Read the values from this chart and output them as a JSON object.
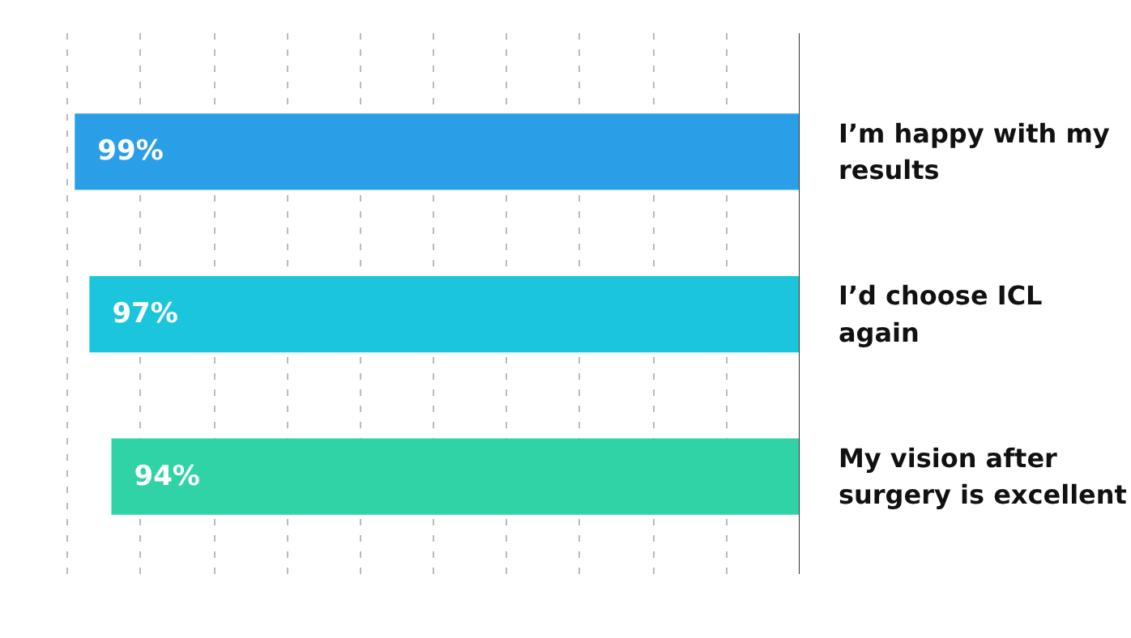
{
  "chart_data": {
    "type": "bar",
    "orientation": "horizontal",
    "categories": [
      "I’m happy with my\nresults",
      "I’d choose ICL\nagain",
      "My vision after\nsurgery is excellent"
    ],
    "values": [
      99,
      97,
      94
    ],
    "colors": [
      "#2a9fe8",
      "#1bc6dc",
      "#2fd3a6"
    ],
    "value_labels": [
      "99%",
      "97%",
      "94%"
    ],
    "grid": "x",
    "tick_labels": "y"
  }
}
